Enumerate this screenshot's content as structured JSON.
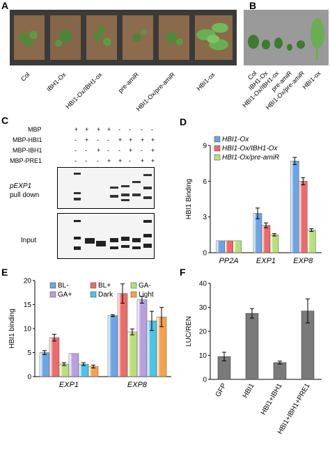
{
  "panel_letters": [
    "A",
    "B",
    "C",
    "D",
    "E",
    "F"
  ],
  "panelA": {
    "genotypes": [
      "Col",
      "IBH1-Ox",
      "HBI1-Ox/IBH1-ox",
      "pre-amiR",
      "HBI1-Ox/pre-amiR",
      "HBI1-ox"
    ]
  },
  "panelB": {
    "genotypes": [
      "Col",
      "IBH1-Ox",
      "HBI1-Ox/IBH1-ox",
      "pre-amiR",
      "HBI1-Ox/pre-amiR",
      "HBI1-ox"
    ]
  },
  "panelC": {
    "row_labels": [
      "MBP",
      "MBP-HBI1",
      "MBP-IBH1",
      "MBP-PRE1"
    ],
    "signs": [
      [
        "+",
        "+",
        "+",
        "+",
        "-",
        "-",
        "-",
        "-"
      ],
      [
        "-",
        "+",
        "-",
        "-",
        "+",
        "+",
        "+",
        "+"
      ],
      [
        "-",
        "-",
        "+",
        "-",
        "-",
        "+",
        "-",
        "+"
      ],
      [
        "-",
        "-",
        "-",
        "+",
        "+",
        "-",
        "+",
        "+"
      ]
    ],
    "blot1_label": "pEXP1",
    "blot1_label2": "pull down",
    "blot2_label": "Input"
  },
  "chart_data": [
    {
      "panel": "D",
      "type": "bar",
      "categories": [
        "PP2A",
        "EXP1",
        "EXP8"
      ],
      "ylabel": "HBI1 Binding",
      "xlabel": "",
      "ylim": [
        0,
        9
      ],
      "yticks": [
        0,
        3,
        6,
        9
      ],
      "legend_position": "top-left",
      "colors": [
        "#6aa6e6",
        "#ee6a6a",
        "#b6e07a"
      ],
      "series": [
        {
          "name": "HBI1-Ox",
          "values": [
            1.0,
            3.3,
            7.7
          ],
          "errors": [
            0.0,
            0.45,
            0.3
          ]
        },
        {
          "name": "HBI1-Ox/IBH1-Ox",
          "values": [
            1.0,
            2.3,
            6.0
          ],
          "errors": [
            0.0,
            0.2,
            0.3
          ]
        },
        {
          "name": "HBI1-Ox/pre-amiR",
          "values": [
            1.0,
            1.5,
            1.9
          ],
          "errors": [
            0.0,
            0.1,
            0.12
          ]
        }
      ]
    },
    {
      "panel": "E",
      "type": "bar",
      "categories": [
        "EXP1",
        "EXP8"
      ],
      "ylabel": "HBI1 binding",
      "xlabel": "",
      "ylim": [
        0,
        20
      ],
      "yticks": [
        0,
        5,
        10,
        15,
        20
      ],
      "legend_position": "top",
      "colors": [
        "#6aa6e6",
        "#ee6a6a",
        "#b6e07a",
        "#b99ee0",
        "#4cc4e6",
        "#f5a24c"
      ],
      "series": [
        {
          "name": "BL-",
          "values": [
            5.0,
            12.7
          ],
          "errors": [
            0.4,
            0.2
          ]
        },
        {
          "name": "BL+",
          "values": [
            8.1,
            17.3
          ],
          "errors": [
            0.7,
            2.0
          ]
        },
        {
          "name": "GA-",
          "values": [
            2.6,
            9.3
          ],
          "errors": [
            0.3,
            0.6
          ]
        },
        {
          "name": "GA+",
          "values": [
            4.8,
            16.0
          ],
          "errors": [
            0.0,
            0.7
          ]
        },
        {
          "name": "Dark",
          "values": [
            2.6,
            11.6
          ],
          "errors": [
            0.3,
            2.0
          ]
        },
        {
          "name": "Light",
          "values": [
            2.1,
            12.4
          ],
          "errors": [
            0.3,
            2.0
          ]
        }
      ]
    },
    {
      "panel": "F",
      "type": "bar",
      "categories": [
        "GFP",
        "HBI1",
        "HBI1+IBH1",
        "HBI1+IBH1+PRE1"
      ],
      "ylabel": "LUC/REN",
      "xlabel": "",
      "ylim": [
        0,
        40
      ],
      "yticks": [
        0,
        10,
        20,
        30,
        40
      ],
      "colors": [
        "#7a7a7a"
      ],
      "series": [
        {
          "values": [
            9.5,
            27.5,
            7.0,
            28.5
          ],
          "errors": [
            1.8,
            2.0,
            0.6,
            5.0
          ]
        }
      ]
    }
  ]
}
